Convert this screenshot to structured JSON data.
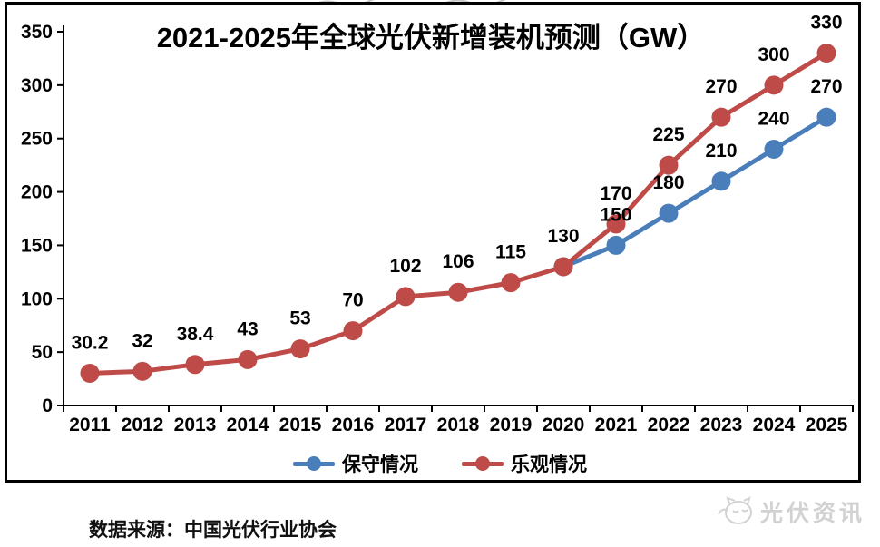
{
  "chart_data": {
    "type": "line",
    "title": "2021-2025年全球光伏新增装机预测（GW）",
    "x_categories": [
      "2011",
      "2012",
      "2013",
      "2014",
      "2015",
      "2016",
      "2017",
      "2018",
      "2019",
      "2020",
      "2021",
      "2022",
      "2023",
      "2024",
      "2025"
    ],
    "ylim": [
      0,
      350
    ],
    "ytick_interval": 50,
    "yticks": [
      "0",
      "50",
      "100",
      "150",
      "200",
      "250",
      "300",
      "350"
    ],
    "grid": false,
    "legend_position": "bottom-center",
    "series": [
      {
        "name": "保守情况",
        "color": "#4A7EBB",
        "values": [
          null,
          null,
          null,
          null,
          null,
          null,
          null,
          null,
          null,
          130,
          150,
          180,
          210,
          240,
          270
        ],
        "point_labels": [
          null,
          null,
          null,
          null,
          null,
          null,
          null,
          null,
          null,
          null,
          "150",
          "180",
          "210",
          "240",
          "270"
        ]
      },
      {
        "name": "乐观情况",
        "color": "#BE4B48",
        "values": [
          30.2,
          32,
          38.4,
          43,
          53,
          70,
          102,
          106,
          115,
          130,
          170,
          225,
          270,
          300,
          330
        ],
        "point_labels": [
          "30.2",
          "32",
          "38.4",
          "43",
          "53",
          "70",
          "102",
          "106",
          "115",
          "130",
          "170",
          "225",
          "270",
          "300",
          "330"
        ]
      }
    ]
  },
  "legend": {
    "items": [
      {
        "label": "保守情况",
        "color": "#4A7EBB"
      },
      {
        "label": "乐观情况",
        "color": "#BE4B48"
      }
    ]
  },
  "footer": {
    "source_text": "数据来源：中国光伏行业协会"
  },
  "watermark": {
    "text": "光伏资讯"
  }
}
